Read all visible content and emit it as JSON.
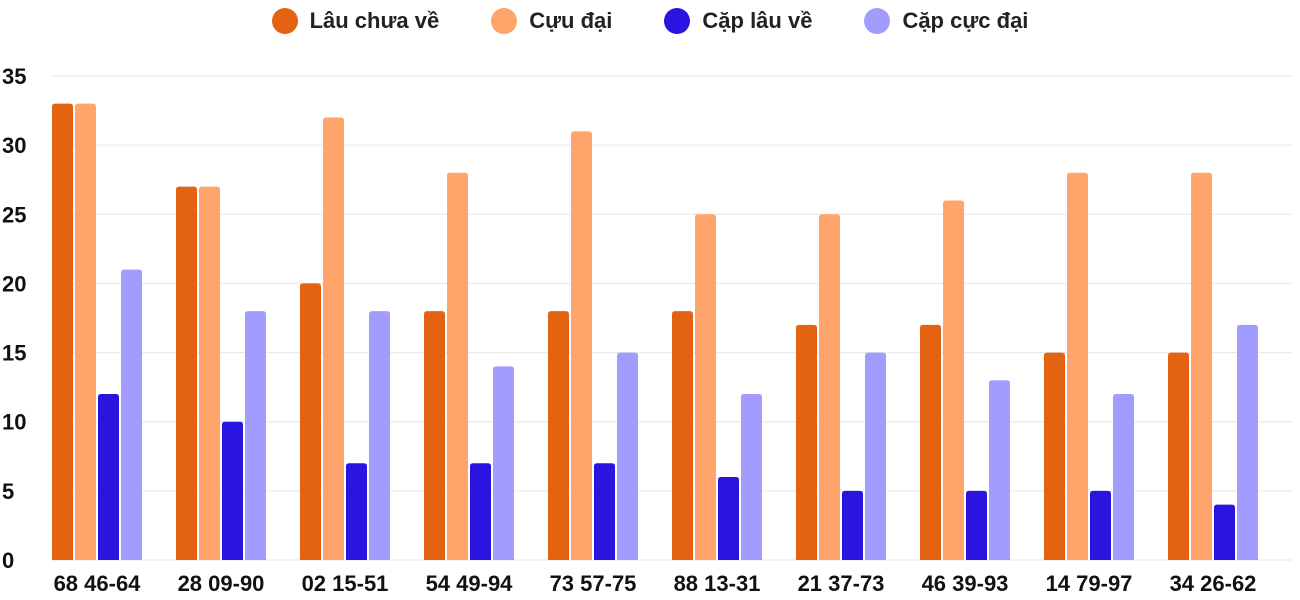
{
  "chart_data": {
    "type": "bar",
    "categories": [
      "68 46-64",
      "28 09-90",
      "02 15-51",
      "54 49-94",
      "73 57-75",
      "88 13-31",
      "21 37-73",
      "46 39-93",
      "14 79-97",
      "34 26-62"
    ],
    "series": [
      {
        "name": "Lâu chưa về",
        "color": "#e46313",
        "values": [
          33,
          27,
          20,
          18,
          18,
          18,
          17,
          17,
          15,
          15
        ]
      },
      {
        "name": "Cựu đại",
        "color": "#ffa46a",
        "values": [
          33,
          27,
          32,
          28,
          31,
          25,
          25,
          26,
          28,
          28
        ]
      },
      {
        "name": "Cặp lâu về",
        "color": "#2a14e0",
        "values": [
          12,
          10,
          7,
          7,
          7,
          6,
          5,
          5,
          5,
          4
        ]
      },
      {
        "name": "Cặp cực đại",
        "color": "#a29cff",
        "values": [
          21,
          18,
          18,
          14,
          15,
          12,
          15,
          13,
          12,
          17
        ]
      }
    ],
    "ylim": [
      0,
      35
    ],
    "yticks": [
      0,
      5,
      10,
      15,
      20,
      25,
      30,
      35
    ],
    "grid": true,
    "legend_position": "top"
  }
}
